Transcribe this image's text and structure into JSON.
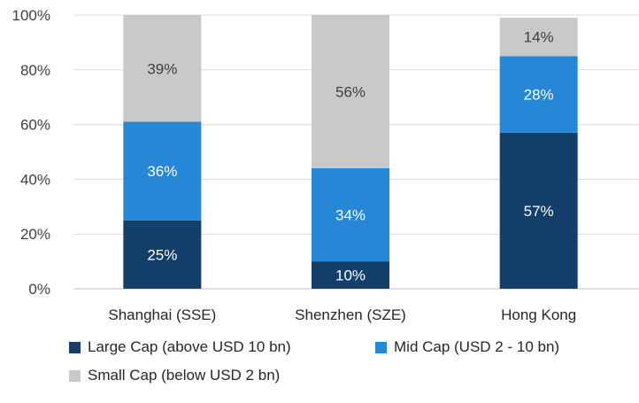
{
  "chart_data": {
    "type": "bar",
    "stacked": true,
    "categories": [
      "Shanghai (SSE)",
      "Shenzhen (SZE)",
      "Hong Kong"
    ],
    "series": [
      {
        "name": "Large Cap (above USD 10 bn)",
        "values": [
          25,
          10,
          57
        ],
        "color": "#143f6b",
        "label_color": "#ffffff"
      },
      {
        "name": "Mid Cap (USD 2 - 10 bn)",
        "values": [
          36,
          34,
          28
        ],
        "color": "#2687d7",
        "label_color": "#ffffff"
      },
      {
        "name": "Small Cap (below USD 2 bn)",
        "values": [
          39,
          56,
          14
        ],
        "color": "#c9c9c9",
        "label_color": "#404040"
      }
    ],
    "data_labels": [
      [
        "25%",
        "10%",
        "57%"
      ],
      [
        "36%",
        "34%",
        "28%"
      ],
      [
        "39%",
        "56%",
        "14%"
      ]
    ],
    "y_ticks": [
      "0%",
      "20%",
      "40%",
      "60%",
      "80%",
      "100%"
    ],
    "ylim": [
      0,
      100
    ],
    "grid": true,
    "legend_position": "bottom"
  }
}
